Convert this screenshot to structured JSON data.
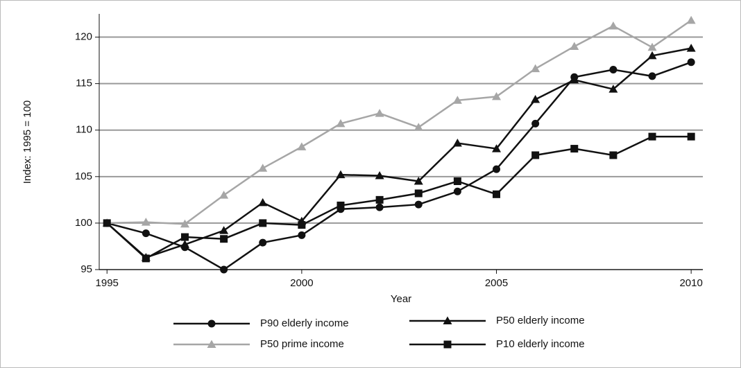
{
  "chart_data": {
    "type": "line",
    "x_label": "Year",
    "y_label": "Index: 1995 = 100",
    "x": [
      1995,
      1996,
      1997,
      1998,
      1999,
      2000,
      2001,
      2002,
      2003,
      2004,
      2005,
      2006,
      2007,
      2008,
      2009,
      2010
    ],
    "series": [
      {
        "name": "P90 elderly income",
        "color": "#111111",
        "marker": "circle",
        "values": [
          100,
          98.9,
          97.4,
          95.0,
          97.9,
          98.7,
          101.5,
          101.7,
          102.0,
          103.4,
          105.8,
          110.7,
          115.7,
          116.5,
          115.8,
          117.3
        ]
      },
      {
        "name": "P50 elderly income",
        "color": "#111111",
        "marker": "triangle",
        "values": [
          100,
          96.3,
          97.7,
          99.2,
          102.2,
          100.2,
          105.2,
          105.1,
          104.5,
          108.6,
          108.0,
          113.3,
          115.4,
          114.4,
          118.0,
          118.8
        ]
      },
      {
        "name": "P50 prime income",
        "color": "#a6a6a6",
        "marker": "triangle",
        "values": [
          100,
          100.1,
          99.9,
          103.0,
          105.9,
          108.2,
          110.7,
          111.8,
          110.3,
          113.2,
          113.6,
          116.6,
          119.0,
          121.2,
          118.9,
          121.8
        ]
      },
      {
        "name": "P10 elderly income",
        "color": "#111111",
        "marker": "square",
        "values": [
          100,
          96.2,
          98.5,
          98.3,
          100.0,
          99.8,
          101.9,
          102.5,
          103.2,
          104.5,
          103.1,
          107.3,
          108.0,
          107.3,
          109.3,
          109.3
        ]
      }
    ],
    "xlim": [
      1994.8,
      2010.3
    ],
    "xticks": [
      1995,
      2000,
      2005,
      2010
    ],
    "ylim": [
      95,
      122.5
    ],
    "yticks": [
      95,
      100,
      105,
      110,
      115,
      120
    ],
    "grid": true,
    "legend": "bottom"
  }
}
